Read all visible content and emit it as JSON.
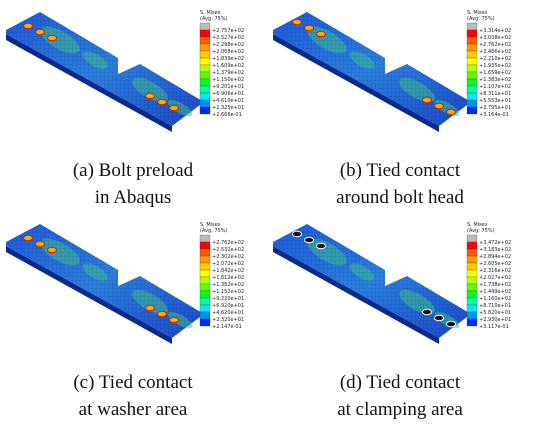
{
  "panels": [
    {
      "legend_title": "S, Mises",
      "legend_subtitle": "(Avg: 75%)",
      "legend_values": [
        "+2.757e+02",
        "+2.527e+02",
        "+2.298e+02",
        "+2.068e+02",
        "+1.839e+02",
        "+1.609e+02",
        "+1.379e+02",
        "+1.150e+02",
        "+9.201e+01",
        "+6.906e+01",
        "+4.610e+01",
        "+2.325e+01",
        "+2.666e-01"
      ],
      "caption": [
        "(a) Bolt preload",
        "in Abaqus"
      ]
    },
    {
      "legend_title": "S, Mises",
      "legend_subtitle": "(Avg: 75%)",
      "legend_values": [
        "+3.314e+02",
        "+3.038e+02",
        "+2.762e+02",
        "+2.486e+02",
        "+2.210e+02",
        "+1.935e+02",
        "+1.659e+02",
        "+1.383e+02",
        "+1.107e+02",
        "+8.311e+01",
        "+5.553e+01",
        "+2.795e+01",
        "+3.164e-01"
      ],
      "caption": [
        "(b) Tied contact",
        "around bolt head"
      ]
    },
    {
      "legend_title": "S, Mises",
      "legend_subtitle": "(Avg: 75%)",
      "legend_values": [
        "+2.762e+02",
        "+2.532e+02",
        "+2.302e+02",
        "+2.072e+02",
        "+1.842e+02",
        "+1.612e+02",
        "+1.382e+02",
        "+1.152e+02",
        "+9.220e+01",
        "+6.920e+01",
        "+4.620e+01",
        "+2.320e+01",
        "+2.147e-01"
      ],
      "caption": [
        "(c) Tied contact",
        "at washer area"
      ]
    },
    {
      "legend_title": "S, Mises",
      "legend_subtitle": "(Avg: 75%)",
      "legend_values": [
        "+3.472e+02",
        "+3.183e+02",
        "+2.894e+02",
        "+2.605e+02",
        "+2.316e+02",
        "+2.027e+02",
        "+1.738e+02",
        "+1.449e+02",
        "+1.160e+02",
        "+8.710e+01",
        "+5.820e+01",
        "+2.930e+01",
        "+3.117e-01"
      ],
      "caption": [
        "(d) Tied contact",
        "at clamping area"
      ]
    }
  ]
}
